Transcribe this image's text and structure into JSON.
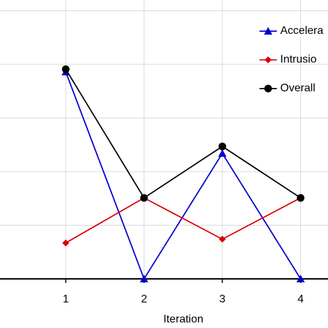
{
  "chart_data": {
    "type": "line",
    "x_label": "Iteration",
    "x": [
      1,
      2,
      3,
      4
    ],
    "xlim": [
      0.16,
      4.35
    ],
    "xticks": [
      1,
      2,
      3,
      4
    ],
    "ylim": [
      0,
      5.2
    ],
    "yticks": [
      0,
      1,
      2,
      3,
      4,
      5
    ],
    "grid": true,
    "legend": "upper-right",
    "series": [
      {
        "name": "Accelera",
        "color": "#0000cc",
        "marker": "triangle",
        "values": [
          3.86,
          0,
          2.34,
          0
        ]
      },
      {
        "name": "Intrusio",
        "color": "#dd0000",
        "marker": "diamond",
        "values": [
          0.67,
          1.51,
          0.74,
          1.51
        ]
      },
      {
        "name": "Overall",
        "color": "#000000",
        "marker": "circle",
        "values": [
          3.91,
          1.51,
          2.47,
          1.51
        ]
      }
    ]
  }
}
